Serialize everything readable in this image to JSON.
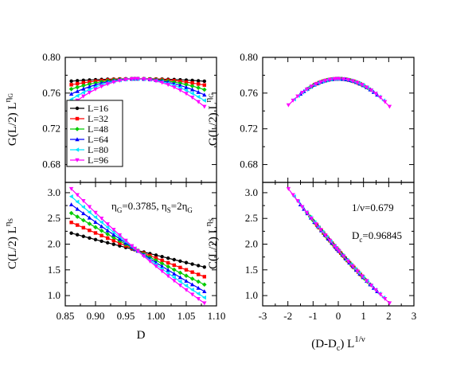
{
  "chart_data": [
    {
      "type": "line",
      "panel": "top-left",
      "ylabel_parts": {
        "base": "G(L/2) L",
        "sup": "η",
        "sup_sub": "G"
      },
      "xlim": [
        0.85,
        1.1
      ],
      "ylim": [
        0.66,
        0.8
      ],
      "xticks": [
        "0.85",
        "0.90",
        "0.95",
        "1.00",
        "1.05",
        "1.10"
      ],
      "yticks": [
        "0.68",
        "0.72",
        "0.76",
        "0.80"
      ],
      "legend": {
        "position": "top-left",
        "entries": [
          "L=16",
          "L=32",
          "L=48",
          "L=64",
          "L=80",
          "L=96"
        ]
      },
      "x": [
        0.86,
        0.87,
        0.88,
        0.89,
        0.9,
        0.91,
        0.92,
        0.93,
        0.94,
        0.95,
        0.96,
        0.965,
        0.97,
        0.98,
        0.99,
        1.0,
        1.01,
        1.02,
        1.03,
        1.04,
        1.05,
        1.06,
        1.07,
        1.08
      ],
      "series": [
        {
          "name": "L=16",
          "color": "#000000",
          "marker": "circle"
        },
        {
          "name": "L=32",
          "color": "#ff0000",
          "marker": "square"
        },
        {
          "name": "L=48",
          "color": "#00cc00",
          "marker": "diamond"
        },
        {
          "name": "L=64",
          "color": "#0000ff",
          "marker": "triangle-up"
        },
        {
          "name": "L=80",
          "color": "#00e5ff",
          "marker": "triangle-left"
        },
        {
          "name": "L=96",
          "color": "#ff00ff",
          "marker": "triangle-down"
        }
      ]
    },
    {
      "type": "line",
      "panel": "top-right",
      "ylabel_parts": {
        "base": "G(L/2) L",
        "sup": "η",
        "sup_sub": "G"
      },
      "xlim": [
        -3,
        3
      ],
      "ylim": [
        0.66,
        0.8
      ],
      "xticks": [
        "-3",
        "-2",
        "-1",
        "0",
        "1",
        "2",
        "3"
      ],
      "yticks": [
        "0.68",
        "0.72",
        "0.76",
        "0.80"
      ]
    },
    {
      "type": "line",
      "panel": "bottom-left",
      "xlabel": "D",
      "ylabel_parts": {
        "base": "C(L/2) L",
        "sup": "η",
        "sup_sub": "S"
      },
      "xlim": [
        0.85,
        1.1
      ],
      "ylim": [
        0.8,
        3.2
      ],
      "xticks": [
        "0.85",
        "0.90",
        "0.95",
        "1.00",
        "1.05",
        "1.10"
      ],
      "yticks": [
        "1.0",
        "1.5",
        "2.0",
        "2.5",
        "3.0"
      ],
      "annotation": {
        "eta_g": "η",
        "eta_g_sub": "G",
        "eta_g_val": "=0.3785, ",
        "eta_s": "η",
        "eta_s_sub": "S",
        "eta_s_val": "=2η",
        "eta_s_val_sub": "G"
      }
    },
    {
      "type": "line",
      "panel": "bottom-right",
      "xlabel_parts": {
        "base": "(D-D",
        "sub": "c",
        "close": ") L",
        "sup": "1/ν"
      },
      "ylabel_parts": {
        "base": "C(L/2) L",
        "sup": "η",
        "sup_sub": "S"
      },
      "xlim": [
        -3,
        3
      ],
      "ylim": [
        0.8,
        3.2
      ],
      "xticks": [
        "-3",
        "-2",
        "-1",
        "0",
        "1",
        "2",
        "3"
      ],
      "yticks": [
        "1.0",
        "1.5",
        "2.0",
        "2.5",
        "3.0"
      ],
      "annotation1": "1/ν=0.679",
      "annotation2": {
        "base": "D",
        "sub": "c",
        "val": "=0.96845"
      }
    }
  ],
  "params": {
    "Dc": 0.96845,
    "inv_nu": 0.679,
    "G_peak": 0.776,
    "C_cross": 1.88
  }
}
